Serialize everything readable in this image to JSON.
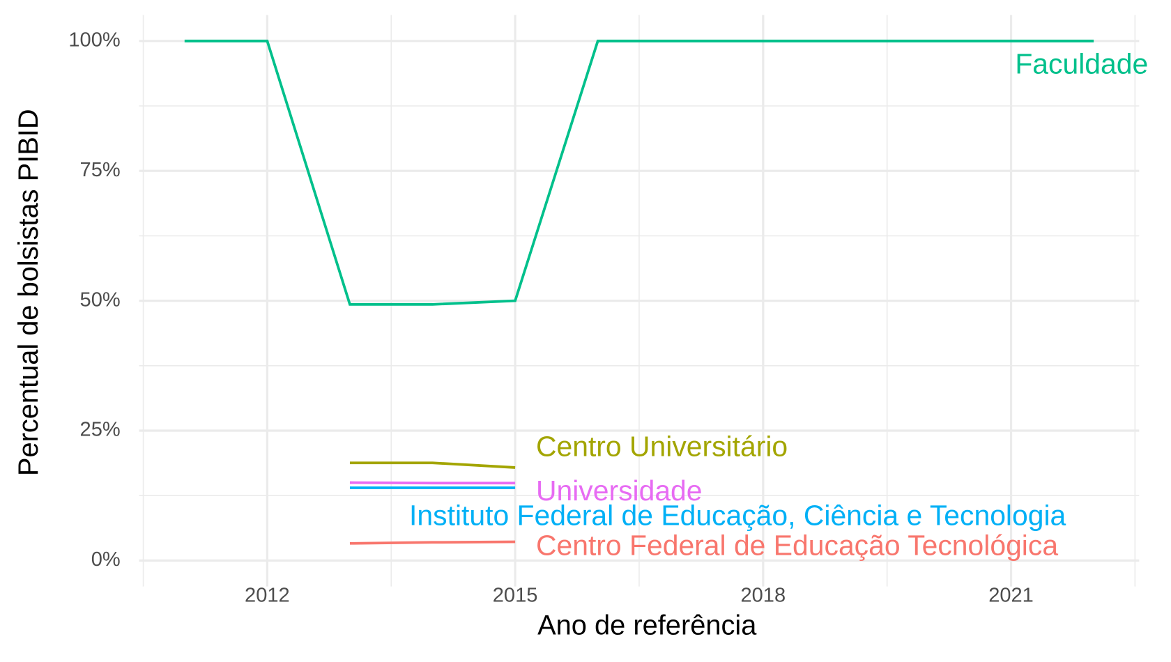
{
  "chart_data": {
    "type": "line",
    "x_label": "Ano de referência",
    "y_label": "Percentual de bolsistas PIBID",
    "xlim": [
      2010.45,
      2022.55
    ],
    "xticks": [
      2012,
      2015,
      2018,
      2021
    ],
    "ylim": [
      -5,
      105
    ],
    "yticks": [
      {
        "value": 0,
        "label": "0%"
      },
      {
        "value": 25,
        "label": "25%"
      },
      {
        "value": 50,
        "label": "50%"
      },
      {
        "value": 75,
        "label": "75%"
      },
      {
        "value": 100,
        "label": "100%"
      }
    ],
    "grid": true,
    "series": [
      {
        "name": "Faculdade",
        "color": "#00C08B",
        "x": [
          2011,
          2012,
          2013,
          2014,
          2015,
          2016,
          2017,
          2018,
          2019,
          2020,
          2021,
          2022
        ],
        "values": [
          100,
          100,
          49.3,
          49.3,
          50,
          100,
          100,
          100,
          100,
          100,
          100,
          100
        ]
      },
      {
        "name": "Centro Universitário",
        "color": "#A3A500",
        "x": [
          2013,
          2014,
          2015
        ],
        "values": [
          18.8,
          18.8,
          17.9
        ]
      },
      {
        "name": "Universidade",
        "color": "#E76BF3",
        "x": [
          2013,
          2014,
          2015
        ],
        "values": [
          15,
          14.9,
          14.9
        ]
      },
      {
        "name": "Instituto Federal de Educação, Ciência e Tecnologia",
        "color": "#00B0F6",
        "x": [
          2013,
          2014,
          2015
        ],
        "values": [
          14,
          14,
          14
        ]
      },
      {
        "name": "Centro Federal de Educação Tecnológica",
        "color": "#F8766D",
        "x": [
          2013,
          2014,
          2015
        ],
        "values": [
          3.3,
          3.5,
          3.6
        ]
      }
    ]
  }
}
